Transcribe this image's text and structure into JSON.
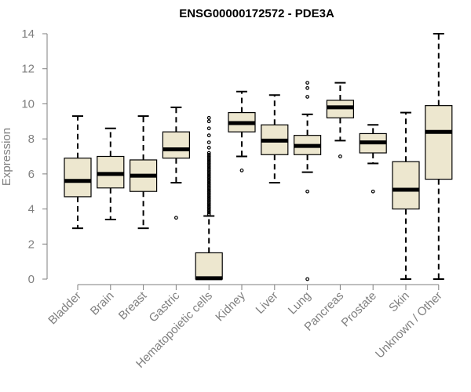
{
  "chart_data": {
    "type": "box",
    "title": "ENSG00000172572 - PDE3A",
    "xlabel": "",
    "ylabel": "Expression",
    "ylim": [
      0,
      14
    ],
    "yticks": [
      0,
      2,
      4,
      6,
      8,
      10,
      12,
      14
    ],
    "grid": false,
    "legend": "none",
    "colors": {
      "box_fill": "#ede7cf",
      "box_edge": "#000000",
      "median": "#000000",
      "axis": "#7f7f7f",
      "axis_text": "#7f7f7f",
      "title": "#000000"
    },
    "categories": [
      "Bladder",
      "Brain",
      "Breast",
      "Gastric",
      "Hematopoietic cells",
      "Kidney",
      "Liver",
      "Lung",
      "Pancreas",
      "Prostate",
      "Skin",
      "Unknown / Other"
    ],
    "boxes": [
      {
        "whisker_low": 2.9,
        "q1": 4.7,
        "median": 5.6,
        "q3": 6.9,
        "whisker_high": 9.3,
        "outliers": []
      },
      {
        "whisker_low": 3.4,
        "q1": 5.2,
        "median": 6.0,
        "q3": 7.0,
        "whisker_high": 8.6,
        "outliers": []
      },
      {
        "whisker_low": 2.9,
        "q1": 5.0,
        "median": 5.9,
        "q3": 6.8,
        "whisker_high": 9.3,
        "outliers": []
      },
      {
        "whisker_low": 5.5,
        "q1": 6.9,
        "median": 7.4,
        "q3": 8.4,
        "whisker_high": 9.8,
        "outliers": [
          3.5
        ]
      },
      {
        "whisker_low": 0.0,
        "q1": 0.0,
        "median": 0.05,
        "q3": 1.5,
        "whisker_high": 3.6,
        "outliers": [
          3.7,
          3.8,
          3.9,
          4.0,
          4.1,
          4.2,
          4.3,
          4.4,
          4.5,
          4.6,
          4.7,
          4.8,
          4.9,
          5.0,
          5.1,
          5.2,
          5.3,
          5.4,
          5.5,
          5.6,
          5.7,
          5.8,
          5.9,
          6.0,
          6.1,
          6.2,
          6.3,
          6.4,
          6.5,
          6.6,
          6.7,
          6.8,
          6.9,
          7.0,
          7.1,
          7.2,
          7.5,
          7.8,
          8.2,
          8.6,
          9.0,
          9.2
        ]
      },
      {
        "whisker_low": 7.0,
        "q1": 8.4,
        "median": 8.9,
        "q3": 9.5,
        "whisker_high": 10.7,
        "outliers": [
          6.2
        ]
      },
      {
        "whisker_low": 5.5,
        "q1": 7.1,
        "median": 7.9,
        "q3": 8.8,
        "whisker_high": 10.5,
        "outliers": []
      },
      {
        "whisker_low": 6.1,
        "q1": 7.1,
        "median": 7.6,
        "q3": 8.2,
        "whisker_high": 9.4,
        "outliers": [
          0.0,
          5.0,
          10.4,
          10.9,
          11.2
        ]
      },
      {
        "whisker_low": 7.9,
        "q1": 9.2,
        "median": 9.8,
        "q3": 10.2,
        "whisker_high": 11.2,
        "outliers": [
          7.0
        ]
      },
      {
        "whisker_low": 6.6,
        "q1": 7.2,
        "median": 7.8,
        "q3": 8.3,
        "whisker_high": 8.8,
        "outliers": [
          5.0
        ]
      },
      {
        "whisker_low": 0.0,
        "q1": 4.0,
        "median": 5.1,
        "q3": 6.7,
        "whisker_high": 9.5,
        "outliers": []
      },
      {
        "whisker_low": 0.0,
        "q1": 5.7,
        "median": 8.4,
        "q3": 9.9,
        "whisker_high": 14.0,
        "outliers": []
      }
    ]
  }
}
